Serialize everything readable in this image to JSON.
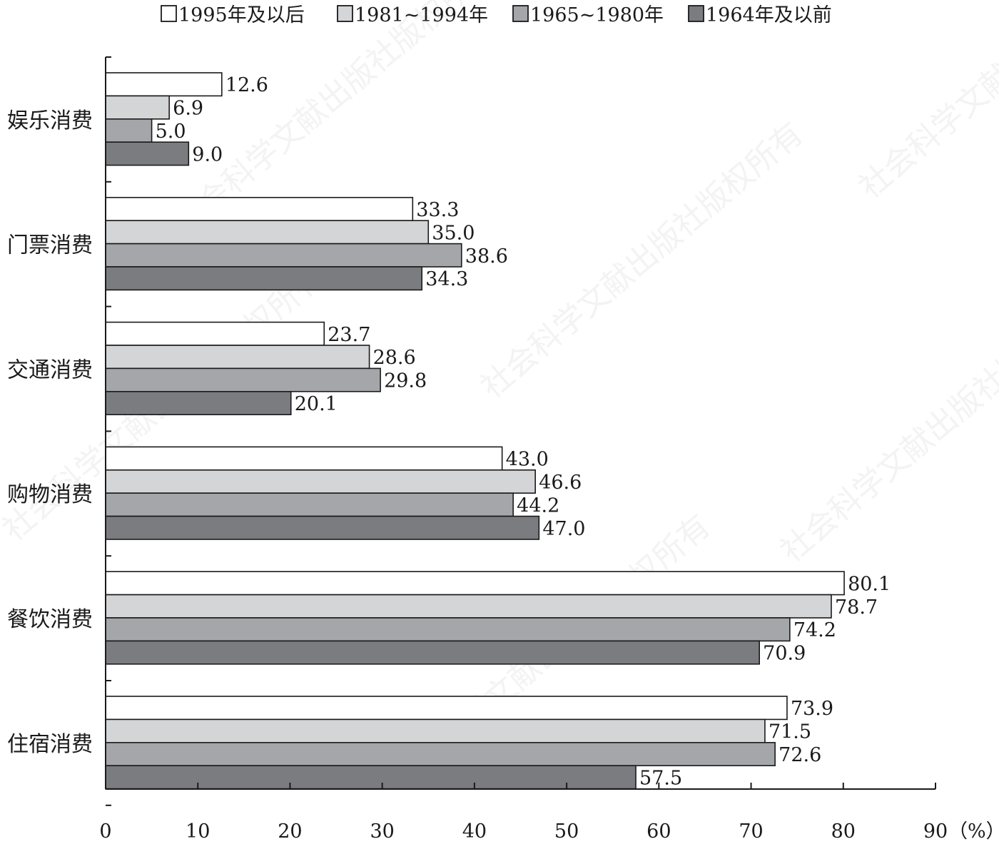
{
  "chart_data": {
    "type": "bar",
    "orientation": "horizontal",
    "title": "",
    "xlabel": "",
    "ylabel": "",
    "unit_label": "（%）",
    "xlim": [
      0,
      90
    ],
    "xticks": [
      0,
      10,
      20,
      30,
      40,
      50,
      60,
      70,
      80,
      90
    ],
    "legend_position": "top",
    "categories": [
      "娱乐消费",
      "门票消费",
      "交通消费",
      "购物消费",
      "餐饮消费",
      "住宿消费"
    ],
    "series": [
      {
        "name": "1995年及以后",
        "color": "#ffffff",
        "values": [
          12.6,
          33.3,
          23.7,
          43.0,
          80.1,
          73.9
        ],
        "labels": [
          "12.6",
          "33.3",
          "23.7",
          "43.0",
          "80.1",
          "73.9"
        ]
      },
      {
        "name": "1981~1994年",
        "color": "#d4d5d7",
        "values": [
          6.9,
          35.0,
          28.6,
          46.6,
          78.7,
          71.5
        ],
        "labels": [
          "6.9",
          "35.0",
          "28.6",
          "46.6",
          "78.7",
          "71.5"
        ]
      },
      {
        "name": "1965~1980年",
        "color": "#a5a6aa",
        "values": [
          5.0,
          38.6,
          29.8,
          44.2,
          74.2,
          72.6
        ],
        "labels": [
          "5.0",
          "38.6",
          "29.8",
          "44.2",
          "74.2",
          "72.6"
        ]
      },
      {
        "name": "1964年及以前",
        "color": "#7b7c80",
        "values": [
          9.0,
          34.3,
          20.1,
          47.0,
          70.9,
          57.5
        ],
        "labels": [
          "9.0",
          "34.3",
          "20.1",
          "47.0",
          "70.9",
          "57.5"
        ]
      }
    ],
    "watermark": "社会科学文献出版社版权所有"
  }
}
